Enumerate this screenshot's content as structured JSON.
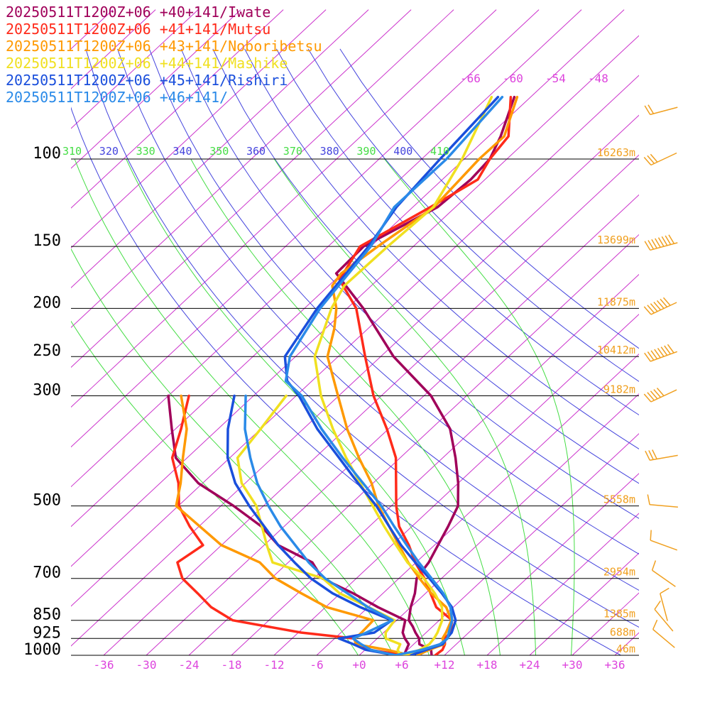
{
  "colors": {
    "isobar": "#000000",
    "isotherm": "#cc33cc",
    "dry_adiabat": "#4444dd",
    "moist_adiabat": "#44dd44",
    "height_label": "#f0a020",
    "tick_label": "#dd44dd",
    "wind_barb": "#f0a020"
  },
  "legend": [
    {
      "label": "20250511T1200Z+06 +40+141/Iwate",
      "color": "#a0005a"
    },
    {
      "label": "20250511T1200Z+06 +41+141/Mutsu",
      "color": "#ff2a1a"
    },
    {
      "label": "20250511T1200Z+06 +43+141/Noboribetsu",
      "color": "#ff9900"
    },
    {
      "label": "20250511T1200Z+06 +44+141/Mashike",
      "color": "#f0e020"
    },
    {
      "label": "20250511T1200Z+06 +45+141/Rishiri",
      "color": "#1a4fdc"
    },
    {
      "label": "20250511T1200Z+06 +46+141/",
      "color": "#2a8ae8"
    }
  ],
  "chart_data": {
    "type": "line",
    "title": "",
    "xlabel": "",
    "ylabel": "",
    "x_ticks": [
      "-36",
      "-30",
      "-24",
      "-18",
      "-12",
      "-6",
      "+0",
      "+6",
      "+12",
      "+18",
      "+24",
      "+30",
      "+36"
    ],
    "x_tick_values": [
      -36,
      -30,
      -24,
      -18,
      -12,
      -6,
      0,
      6,
      12,
      18,
      24,
      30,
      36
    ],
    "pressure_levels": [
      100,
      150,
      200,
      250,
      300,
      500,
      700,
      850,
      925,
      1000
    ],
    "pressure_labels": [
      "100",
      "150",
      "200",
      "250",
      "300",
      "500",
      "700",
      "850",
      "925",
      "1000"
    ],
    "height_labels": [
      "16263m",
      "13699m",
      "11875m",
      "10412m",
      "9182m",
      "5558m",
      "2954m",
      "1385m",
      "688m",
      "46m"
    ],
    "theta_labels": [
      {
        "text": "310",
        "kind": "moist"
      },
      {
        "text": "320",
        "kind": "dry"
      },
      {
        "text": "330",
        "kind": "moist"
      },
      {
        "text": "340",
        "kind": "dry"
      },
      {
        "text": "350",
        "kind": "moist"
      },
      {
        "text": "360",
        "kind": "dry"
      },
      {
        "text": "370",
        "kind": "moist"
      },
      {
        "text": "380",
        "kind": "dry"
      },
      {
        "text": "390",
        "kind": "moist"
      },
      {
        "text": "400",
        "kind": "dry"
      },
      {
        "text": "410",
        "kind": "moist"
      }
    ],
    "upper_isotherm_labels": [
      "-66",
      "-60",
      "-54",
      "-48"
    ],
    "upper_isotherm_values": [
      -66,
      -60,
      -54,
      -48
    ],
    "series": [
      {
        "name": "20250511T1200Z+06 +40+141/Iwate",
        "color": "#a0005a",
        "temperature": [
          [
            1000,
            10.2
          ],
          [
            975,
            9.3
          ],
          [
            950,
            6.8
          ],
          [
            925,
            5.9
          ],
          [
            900,
            4.5
          ],
          [
            875,
            3.2
          ],
          [
            850,
            1.7
          ],
          [
            800,
            0.0
          ],
          [
            750,
            -1.5
          ],
          [
            700,
            -3.5
          ],
          [
            650,
            -4.2
          ],
          [
            600,
            -5.5
          ],
          [
            550,
            -6.9
          ],
          [
            500,
            -8.6
          ],
          [
            450,
            -12.0
          ],
          [
            400,
            -16.2
          ],
          [
            350,
            -21.3
          ],
          [
            300,
            -29.0
          ],
          [
            250,
            -40.2
          ],
          [
            200,
            -51.7
          ],
          [
            170,
            -60.8
          ],
          [
            150,
            -61.0
          ],
          [
            125,
            -56.5
          ],
          [
            110,
            -56.0
          ],
          [
            100,
            -56.4
          ],
          [
            90,
            -58.3
          ],
          [
            75,
            -62.3
          ]
        ],
        "dewpoint": [
          [
            1000,
            6.3
          ],
          [
            975,
            5.8
          ],
          [
            950,
            5.3
          ],
          [
            925,
            3.9
          ],
          [
            900,
            2.7
          ],
          [
            850,
            1.2
          ],
          [
            800,
            -4.6
          ],
          [
            750,
            -10.2
          ],
          [
            700,
            -16.8
          ],
          [
            650,
            -20.6
          ],
          [
            600,
            -28.0
          ],
          [
            550,
            -33.2
          ],
          [
            500,
            -40.2
          ],
          [
            450,
            -48.6
          ],
          [
            400,
            -55.6
          ],
          [
            350,
            -60.5
          ],
          [
            300,
            -66.0
          ]
        ]
      },
      {
        "name": "20250511T1200Z+06 +41+141/Mutsu",
        "color": "#ff2a1a",
        "temperature": [
          [
            1000,
            10.7
          ],
          [
            975,
            10.9
          ],
          [
            950,
            10.4
          ],
          [
            925,
            9.5
          ],
          [
            900,
            9.4
          ],
          [
            850,
            7.8
          ],
          [
            800,
            3.6
          ],
          [
            750,
            0.7
          ],
          [
            700,
            -2.4
          ],
          [
            650,
            -6.1
          ],
          [
            600,
            -9.6
          ],
          [
            550,
            -13.8
          ],
          [
            500,
            -17.3
          ],
          [
            400,
            -24.6
          ],
          [
            350,
            -30.2
          ],
          [
            300,
            -37.1
          ],
          [
            250,
            -44.2
          ],
          [
            200,
            -52.7
          ],
          [
            175,
            -59.4
          ],
          [
            150,
            -61.5
          ],
          [
            125,
            -57.5
          ],
          [
            110,
            -55.0
          ],
          [
            100,
            -56.4
          ],
          [
            90,
            -57.2
          ],
          [
            75,
            -62.8
          ]
        ],
        "dewpoint": [
          [
            1000,
            6.6
          ],
          [
            975,
            0.6
          ],
          [
            950,
            -2.0
          ],
          [
            925,
            -3.3
          ],
          [
            900,
            -11.6
          ],
          [
            850,
            -23.1
          ],
          [
            800,
            -28.1
          ],
          [
            750,
            -32.1
          ],
          [
            700,
            -36.5
          ],
          [
            650,
            -39.6
          ],
          [
            600,
            -38.6
          ],
          [
            550,
            -43.3
          ],
          [
            500,
            -47.9
          ],
          [
            450,
            -51.4
          ],
          [
            400,
            -56.1
          ],
          [
            350,
            -59.2
          ],
          [
            300,
            -63.1
          ]
        ]
      },
      {
        "name": "20250511T1200Z+06 +43+141/Noboribetsu",
        "color": "#ff9900",
        "temperature": [
          [
            1000,
            8.2
          ],
          [
            975,
            9.0
          ],
          [
            950,
            10.3
          ],
          [
            925,
            9.2
          ],
          [
            900,
            8.8
          ],
          [
            850,
            7.7
          ],
          [
            800,
            5.0
          ],
          [
            750,
            0.8
          ],
          [
            700,
            -3.1
          ],
          [
            650,
            -7.1
          ],
          [
            600,
            -11.0
          ],
          [
            550,
            -15.2
          ],
          [
            500,
            -19.8
          ],
          [
            450,
            -24.2
          ],
          [
            400,
            -29.8
          ],
          [
            350,
            -35.8
          ],
          [
            300,
            -42.1
          ],
          [
            250,
            -49.5
          ],
          [
            220,
            -52.7
          ],
          [
            200,
            -55.5
          ],
          [
            180,
            -59.5
          ],
          [
            170,
            -60.1
          ],
          [
            150,
            -59.0
          ],
          [
            125,
            -57.0
          ],
          [
            100,
            -57.9
          ],
          [
            90,
            -57.8
          ],
          [
            75,
            -61.9
          ]
        ],
        "dewpoint": [
          [
            1000,
            7.2
          ],
          [
            975,
            3.1
          ],
          [
            950,
            -2.2
          ],
          [
            925,
            -3.1
          ],
          [
            900,
            -3.1
          ],
          [
            850,
            -3.3
          ],
          [
            800,
            -11.8
          ],
          [
            750,
            -17.5
          ],
          [
            700,
            -23.4
          ],
          [
            650,
            -28.0
          ],
          [
            600,
            -36.0
          ],
          [
            500,
            -48.3
          ],
          [
            450,
            -51.1
          ],
          [
            400,
            -54.6
          ],
          [
            350,
            -58.4
          ],
          [
            300,
            -64.2
          ]
        ]
      },
      {
        "name": "20250511T1200Z+06 +44+141/Mashike",
        "color": "#f0e020",
        "temperature": [
          [
            1000,
            6.2
          ],
          [
            975,
            7.7
          ],
          [
            950,
            8.2
          ],
          [
            925,
            8.0
          ],
          [
            900,
            7.6
          ],
          [
            850,
            6.4
          ],
          [
            800,
            4.4
          ],
          [
            750,
            1.3
          ],
          [
            700,
            -2.5
          ],
          [
            650,
            -7.2
          ],
          [
            600,
            -11.4
          ],
          [
            550,
            -15.9
          ],
          [
            500,
            -20.6
          ],
          [
            450,
            -25.8
          ],
          [
            400,
            -31.6
          ],
          [
            350,
            -37.8
          ],
          [
            300,
            -44.5
          ],
          [
            250,
            -51.3
          ],
          [
            200,
            -56.2
          ],
          [
            180,
            -57.8
          ],
          [
            150,
            -57.6
          ],
          [
            125,
            -57.1
          ],
          [
            100,
            -60.3
          ],
          [
            75,
            -65.5
          ]
        ],
        "dewpoint": [
          [
            1000,
            5.8
          ],
          [
            975,
            4.6
          ],
          [
            950,
            4.1
          ],
          [
            925,
            1.2
          ],
          [
            900,
            0.3
          ],
          [
            850,
            -0.3
          ],
          [
            800,
            -5.9
          ],
          [
            750,
            -12.1
          ],
          [
            700,
            -16.7
          ],
          [
            650,
            -26.2
          ],
          [
            600,
            -29.6
          ],
          [
            500,
            -37.0
          ],
          [
            450,
            -42.5
          ],
          [
            400,
            -46.9
          ],
          [
            350,
            -48.0
          ],
          [
            300,
            -49.4
          ]
        ]
      },
      {
        "name": "20250511T1200Z+06 +45+141/Rishiri",
        "color": "#1a4fdc",
        "temperature": [
          [
            1000,
            7.3
          ],
          [
            975,
            8.6
          ],
          [
            950,
            10.1
          ],
          [
            925,
            9.8
          ],
          [
            900,
            9.6
          ],
          [
            850,
            8.3
          ],
          [
            800,
            5.8
          ],
          [
            750,
            2.3
          ],
          [
            700,
            -1.7
          ],
          [
            650,
            -6.1
          ],
          [
            600,
            -10.7
          ],
          [
            550,
            -15.2
          ],
          [
            500,
            -20.1
          ],
          [
            450,
            -26.1
          ],
          [
            400,
            -32.6
          ],
          [
            350,
            -40.0
          ],
          [
            300,
            -47.6
          ],
          [
            280,
            -51.5
          ],
          [
            250,
            -55.5
          ],
          [
            200,
            -58.2
          ],
          [
            150,
            -60.3
          ],
          [
            125,
            -62.3
          ],
          [
            100,
            -63.4
          ],
          [
            75,
            -64.6
          ]
        ],
        "dewpoint": [
          [
            1000,
            5.2
          ],
          [
            975,
            0.1
          ],
          [
            950,
            -2.5
          ],
          [
            925,
            -5.4
          ],
          [
            900,
            -1.3
          ],
          [
            850,
            -0.7
          ],
          [
            800,
            -7.1
          ],
          [
            750,
            -13.1
          ],
          [
            700,
            -18.4
          ],
          [
            650,
            -23.1
          ],
          [
            600,
            -28.0
          ],
          [
            550,
            -32.8
          ],
          [
            500,
            -38.0
          ],
          [
            450,
            -43.4
          ],
          [
            400,
            -48.3
          ],
          [
            350,
            -52.6
          ],
          [
            300,
            -56.7
          ]
        ]
      },
      {
        "name": "20250511T1200Z+06 +46+141/",
        "color": "#2a8ae8",
        "temperature": [
          [
            1000,
            5.1
          ],
          [
            975,
            8.0
          ],
          [
            950,
            9.7
          ],
          [
            925,
            9.9
          ],
          [
            900,
            9.2
          ],
          [
            850,
            7.8
          ],
          [
            800,
            5.6
          ],
          [
            750,
            2.5
          ],
          [
            700,
            -1.4
          ],
          [
            650,
            -5.6
          ],
          [
            600,
            -9.9
          ],
          [
            550,
            -14.5
          ],
          [
            500,
            -19.4
          ],
          [
            450,
            -25.4
          ],
          [
            400,
            -32.1
          ],
          [
            350,
            -39.4
          ],
          [
            300,
            -47.2
          ],
          [
            280,
            -51.7
          ],
          [
            250,
            -54.8
          ],
          [
            200,
            -57.8
          ],
          [
            150,
            -60.0
          ],
          [
            125,
            -62.6
          ],
          [
            100,
            -62.5
          ],
          [
            75,
            -64.0
          ]
        ],
        "dewpoint": [
          [
            1000,
            5.1
          ],
          [
            975,
            0.8
          ],
          [
            950,
            -1.4
          ],
          [
            925,
            -3.4
          ],
          [
            900,
            -2.4
          ],
          [
            850,
            -0.6
          ],
          [
            800,
            -6.0
          ],
          [
            750,
            -11.0
          ],
          [
            700,
            -16.4
          ],
          [
            650,
            -21.1
          ],
          [
            600,
            -25.6
          ],
          [
            550,
            -30.5
          ],
          [
            500,
            -35.3
          ],
          [
            450,
            -40.3
          ],
          [
            400,
            -45.1
          ],
          [
            350,
            -50.2
          ],
          [
            300,
            -55.1
          ]
        ]
      }
    ],
    "isotherm_step": 6,
    "dry_adiabats_K": [
      310,
      320,
      330,
      340,
      350,
      360,
      370,
      380,
      390,
      400
    ],
    "moist_adiabats_K": [
      273,
      278,
      283,
      288,
      293,
      298,
      303
    ],
    "wind_barbs": [
      {
        "p": 80,
        "dir": 255,
        "speed": 25
      },
      {
        "p": 100,
        "dir": 245,
        "speed": 35
      },
      {
        "p": 150,
        "dir": 255,
        "speed": 90
      },
      {
        "p": 200,
        "dir": 245,
        "speed": 75
      },
      {
        "p": 250,
        "dir": 250,
        "speed": 110
      },
      {
        "p": 300,
        "dir": 245,
        "speed": 55
      },
      {
        "p": 400,
        "dir": 260,
        "speed": 30
      },
      {
        "p": 500,
        "dir": 275,
        "speed": 10
      },
      {
        "p": 600,
        "dir": 290,
        "speed": 10
      },
      {
        "p": 700,
        "dir": 305,
        "speed": 10
      },
      {
        "p": 800,
        "dir": 345,
        "speed": 10
      },
      {
        "p": 850,
        "dir": 320,
        "speed": 10
      },
      {
        "p": 925,
        "dir": 310,
        "speed": 10
      }
    ]
  }
}
